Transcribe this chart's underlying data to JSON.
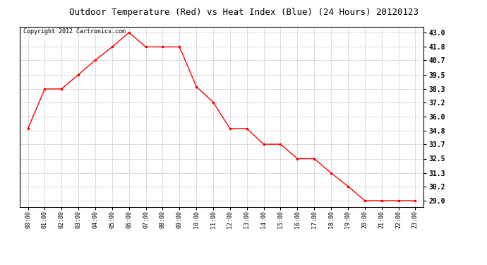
{
  "title": "Outdoor Temperature (Red) vs Heat Index (Blue) (24 Hours) 20120123",
  "copyright_text": "Copyright 2012 Cartronics.com",
  "hours": [
    "00:00",
    "01:00",
    "02:00",
    "03:00",
    "04:00",
    "05:00",
    "06:00",
    "07:00",
    "08:00",
    "09:00",
    "10:00",
    "11:00",
    "12:00",
    "13:00",
    "14:00",
    "15:00",
    "16:00",
    "17:00",
    "18:00",
    "19:00",
    "20:00",
    "21:00",
    "22:00",
    "23:00"
  ],
  "temperature": [
    35.0,
    38.3,
    38.3,
    39.5,
    40.7,
    41.8,
    43.0,
    41.8,
    41.8,
    41.8,
    38.5,
    37.2,
    35.0,
    35.0,
    33.7,
    33.7,
    32.5,
    32.5,
    31.3,
    30.2,
    29.0,
    29.0,
    29.0,
    29.0
  ],
  "line_color_temp": "red",
  "marker": "s",
  "marker_size": 2,
  "line_width": 1.0,
  "yticks": [
    29.0,
    30.2,
    31.3,
    32.5,
    33.7,
    34.8,
    36.0,
    37.2,
    38.3,
    39.5,
    40.7,
    41.8,
    43.0
  ],
  "ymin": 28.5,
  "ymax": 43.5,
  "background_color": "#ffffff",
  "plot_bg_color": "#ffffff",
  "grid_color": "#bbbbbb",
  "title_fontsize": 9,
  "copyright_fontsize": 6,
  "xtick_fontsize": 6,
  "ytick_fontsize": 7
}
